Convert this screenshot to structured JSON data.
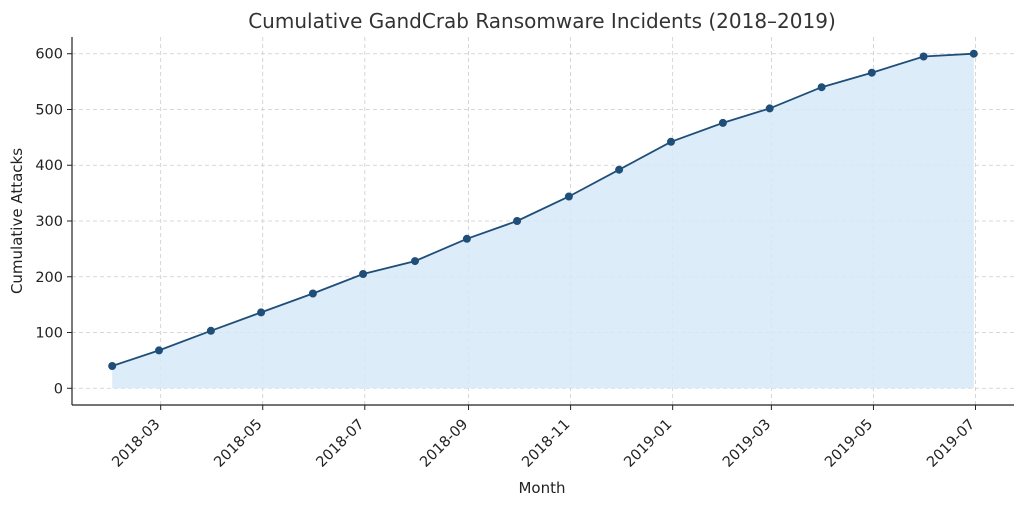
{
  "chart_data": {
    "type": "area",
    "title": "Cumulative GandCrab Ransomware Incidents (2018–2019)",
    "xlabel": "Month",
    "ylabel": "Cumulative Attacks",
    "x": [
      "2018-01-31",
      "2018-02-28",
      "2018-03-31",
      "2018-04-30",
      "2018-05-31",
      "2018-06-30",
      "2018-07-31",
      "2018-08-31",
      "2018-09-30",
      "2018-10-31",
      "2018-11-30",
      "2018-12-31",
      "2019-01-31",
      "2019-02-28",
      "2019-03-31",
      "2019-04-30",
      "2019-05-31",
      "2019-06-30"
    ],
    "series": [
      {
        "values": [
          40,
          68,
          103,
          136,
          170,
          205,
          228,
          268,
          300,
          344,
          392,
          442,
          476,
          502,
          540,
          566,
          595,
          600
        ]
      }
    ],
    "xticks": [
      "2018-03",
      "2018-05",
      "2018-07",
      "2018-09",
      "2018-11",
      "2019-01",
      "2019-03",
      "2019-05",
      "2019-07"
    ],
    "yticks": [
      0,
      100,
      200,
      300,
      400,
      500,
      600
    ],
    "ylim": [
      -30,
      630
    ],
    "xlim": [
      "2018-01-07",
      "2019-07-24"
    ],
    "grid": true,
    "colors": {
      "line": "#1f4e79",
      "fill": "#d6e9f8",
      "grid": "#cccccc",
      "axis": "#222222"
    }
  }
}
